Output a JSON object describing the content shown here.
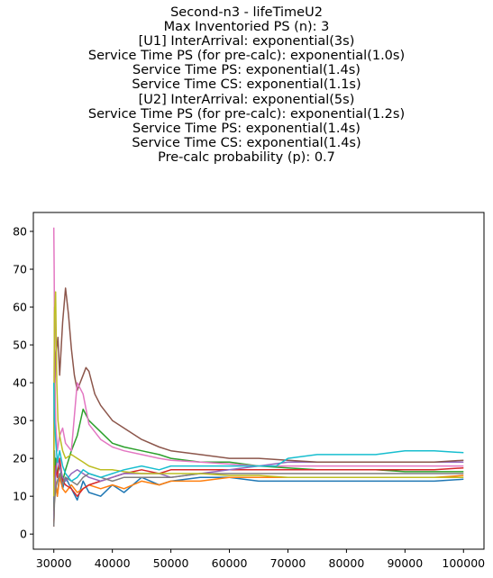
{
  "chart_data": {
    "type": "line",
    "title": "Second-n3 - lifeTimeU2",
    "subtitle_lines": [
      "",
      "Max Inventoried PS (n): 3",
      "[U1] InterArrival: exponential(3s)",
      "Service Time PS (for pre-calc): exponential(1.0s)",
      "Service Time PS: exponential(1.4s)",
      "Service Time CS: exponential(1.1s)",
      "[U2] InterArrival: exponential(5s)",
      "Service Time PS (for pre-calc): exponential(1.2s)",
      "Service Time PS: exponential(1.4s)",
      "Service Time CS: exponential(1.4s)",
      "Pre-calc probability (p): 0.7"
    ],
    "xlabel": "",
    "ylabel": "",
    "xlim": [
      26500,
      103500
    ],
    "ylim": [
      -4,
      85
    ],
    "xticks": [
      30000,
      40000,
      50000,
      60000,
      70000,
      80000,
      90000,
      100000
    ],
    "yticks": [
      0,
      10,
      20,
      30,
      40,
      50,
      60,
      70,
      80
    ],
    "grid": false,
    "legend": "none",
    "series": [
      {
        "color": "#1f77b4",
        "x": [
          30000,
          30100,
          30300,
          30600,
          31000,
          31500,
          32000,
          33000,
          34000,
          35000,
          36000,
          38000,
          40000,
          42000,
          45000,
          48000,
          50000,
          55000,
          60000,
          65000,
          70000,
          75000,
          80000,
          85000,
          90000,
          95000,
          100000
        ],
        "y": [
          5,
          22,
          13,
          10,
          16,
          12,
          15,
          12,
          9,
          14,
          11,
          10,
          13,
          11,
          15,
          13,
          14,
          15,
          15,
          14,
          14,
          14,
          14,
          14,
          14,
          14,
          14.5
        ]
      },
      {
        "color": "#ff7f0e",
        "x": [
          30000,
          30100,
          30300,
          30600,
          31000,
          31500,
          32000,
          33000,
          34000,
          35000,
          36000,
          38000,
          40000,
          42000,
          45000,
          48000,
          50000,
          55000,
          60000,
          65000,
          70000,
          75000,
          80000,
          85000,
          90000,
          95000,
          100000
        ],
        "y": [
          3,
          9,
          14,
          10,
          15,
          12,
          11,
          13,
          11,
          12,
          13,
          12,
          13,
          12,
          14,
          13,
          14,
          14,
          15,
          15,
          15,
          15,
          15,
          15,
          15,
          15,
          15.5
        ]
      },
      {
        "color": "#2ca02c",
        "x": [
          30000,
          30100,
          30300,
          30600,
          31000,
          31500,
          32000,
          33000,
          34000,
          35000,
          36000,
          38000,
          40000,
          42000,
          45000,
          48000,
          50000,
          55000,
          60000,
          65000,
          70000,
          75000,
          80000,
          85000,
          90000,
          95000,
          100000
        ],
        "y": [
          6,
          15,
          20,
          16,
          18,
          14,
          17,
          22,
          26,
          33,
          30,
          27,
          24,
          23,
          22,
          21,
          20,
          19,
          19,
          18,
          17.5,
          17,
          17,
          17,
          16.5,
          16.5,
          16.5
        ]
      },
      {
        "color": "#d62728",
        "x": [
          30000,
          30100,
          30300,
          30600,
          31000,
          31500,
          32000,
          33000,
          34000,
          35000,
          36000,
          38000,
          40000,
          42000,
          45000,
          48000,
          50000,
          55000,
          60000,
          65000,
          70000,
          75000,
          80000,
          85000,
          90000,
          95000,
          100000
        ],
        "y": [
          2,
          12,
          18,
          15,
          20,
          14,
          13,
          12,
          10,
          12,
          13,
          14,
          15,
          16,
          17,
          16,
          17,
          17,
          17,
          17,
          17,
          17,
          17,
          17,
          17,
          17,
          17.5
        ]
      },
      {
        "color": "#9467bd",
        "x": [
          30000,
          30100,
          30300,
          30600,
          31000,
          31500,
          32000,
          33000,
          34000,
          35000,
          36000,
          38000,
          40000,
          42000,
          45000,
          48000,
          50000,
          55000,
          60000,
          65000,
          70000,
          75000,
          80000,
          85000,
          90000,
          95000,
          100000
        ],
        "y": [
          4,
          10,
          16,
          20,
          18,
          15,
          14,
          16,
          17,
          16,
          15,
          14,
          15,
          16,
          16,
          16,
          15,
          16,
          17,
          18,
          19,
          19,
          19,
          19,
          19,
          19,
          19
        ]
      },
      {
        "color": "#8c564b",
        "x": [
          30000,
          30100,
          30200,
          30400,
          30700,
          31000,
          31500,
          32000,
          32500,
          33000,
          33500,
          34000,
          34500,
          35000,
          35500,
          36000,
          37000,
          38000,
          40000,
          42000,
          45000,
          48000,
          50000,
          55000,
          60000,
          65000,
          70000,
          75000,
          80000,
          85000,
          90000,
          95000,
          100000
        ],
        "y": [
          15,
          60,
          40,
          48,
          52,
          42,
          56,
          65,
          58,
          49,
          42,
          38,
          40,
          42,
          44,
          43,
          37,
          34,
          30,
          28,
          25,
          23,
          22,
          21,
          20,
          20,
          19.5,
          19,
          19,
          19,
          19,
          19,
          19.5
        ]
      },
      {
        "color": "#e377c2",
        "x": [
          30000,
          30050,
          30150,
          30300,
          30600,
          31000,
          31500,
          32000,
          33000,
          34000,
          35000,
          36000,
          38000,
          40000,
          42000,
          45000,
          48000,
          50000,
          55000,
          60000,
          65000,
          70000,
          75000,
          80000,
          85000,
          90000,
          95000,
          100000
        ],
        "y": [
          81,
          70,
          45,
          30,
          22,
          26,
          28,
          24,
          22,
          40,
          37,
          29,
          25,
          23,
          22,
          21,
          20,
          19.5,
          19,
          18.5,
          18,
          18,
          18,
          18,
          18,
          18,
          18,
          18
        ]
      },
      {
        "color": "#7f7f7f",
        "x": [
          30000,
          30100,
          30300,
          30600,
          31000,
          31500,
          32000,
          33000,
          34000,
          35000,
          36000,
          38000,
          40000,
          42000,
          45000,
          48000,
          50000,
          55000,
          60000,
          65000,
          70000,
          75000,
          80000,
          85000,
          90000,
          95000,
          100000
        ],
        "y": [
          2,
          8,
          12,
          14,
          16,
          13,
          15,
          14,
          13,
          15,
          16,
          15,
          14,
          15,
          15,
          15,
          15,
          16,
          16,
          16,
          16,
          16,
          16,
          16,
          16,
          16,
          16
        ]
      },
      {
        "color": "#bcbd22",
        "x": [
          30000,
          30100,
          30300,
          30500,
          30700,
          31000,
          31500,
          32000,
          33000,
          34000,
          35000,
          36000,
          38000,
          40000,
          42000,
          45000,
          48000,
          50000,
          55000,
          60000,
          65000,
          70000,
          75000,
          80000,
          85000,
          90000,
          95000,
          100000
        ],
        "y": [
          10,
          58,
          64,
          40,
          30,
          26,
          22,
          20,
          21,
          20,
          19,
          18,
          17,
          17,
          16.5,
          16,
          16,
          16,
          16,
          15.5,
          15.5,
          15,
          15,
          15,
          15,
          15,
          15,
          15
        ]
      },
      {
        "color": "#17becf",
        "x": [
          30000,
          30100,
          30300,
          30600,
          31000,
          31500,
          32000,
          33000,
          34000,
          35000,
          36000,
          38000,
          40000,
          42000,
          45000,
          48000,
          50000,
          55000,
          60000,
          65000,
          68000,
          70000,
          75000,
          80000,
          85000,
          90000,
          95000,
          100000
        ],
        "y": [
          40,
          30,
          25,
          19,
          22,
          18,
          16,
          14,
          15,
          17,
          16,
          15,
          16,
          17,
          18,
          17,
          18,
          18,
          18,
          18,
          18,
          20,
          21,
          21,
          21,
          22,
          22,
          21.5
        ]
      }
    ]
  }
}
